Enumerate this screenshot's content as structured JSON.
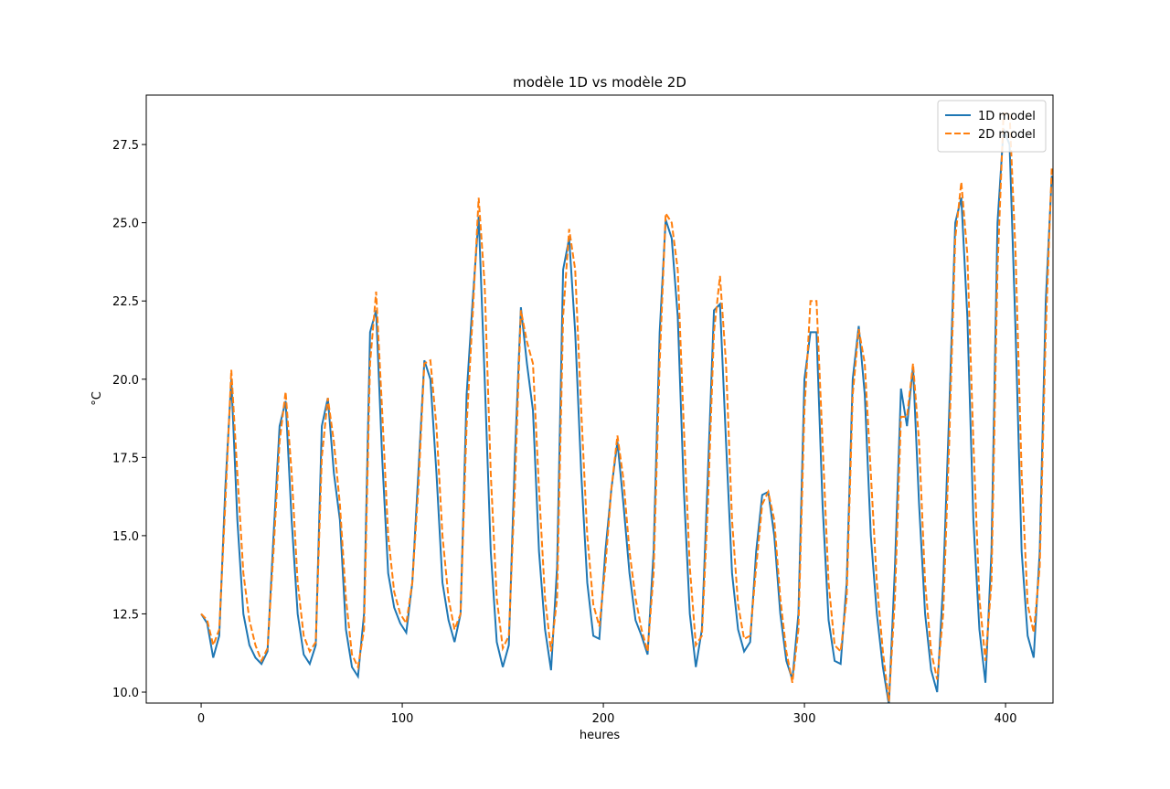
{
  "chart_data": {
    "type": "line",
    "title": "modèle 1D vs modèle 2D",
    "x_label": "heures",
    "y_label": "°C",
    "x": [
      0,
      3,
      6,
      9,
      12,
      15,
      18,
      21,
      24,
      27,
      30,
      33,
      36,
      39,
      42,
      45,
      48,
      51,
      54,
      57,
      60,
      63,
      66,
      69,
      72,
      75,
      78,
      81,
      84,
      87,
      90,
      93,
      96,
      99,
      102,
      105,
      108,
      111,
      114,
      117,
      120,
      123,
      126,
      129,
      132,
      135,
      138,
      141,
      144,
      147,
      150,
      153,
      156,
      159,
      162,
      165,
      168,
      171,
      174,
      177,
      180,
      183,
      186,
      189,
      192,
      195,
      198,
      201,
      204,
      207,
      210,
      213,
      216,
      219,
      222,
      225,
      228,
      231,
      234,
      237,
      240,
      243,
      246,
      249,
      252,
      255,
      258,
      261,
      264,
      267,
      270,
      273,
      276,
      279,
      282,
      285,
      288,
      291,
      294,
      297,
      300,
      303,
      306,
      309,
      312,
      315,
      318,
      321,
      324,
      327,
      330,
      333,
      336,
      339,
      342,
      345,
      348,
      351,
      354,
      357,
      360,
      363,
      366,
      369,
      372,
      375,
      378,
      381,
      384,
      387,
      390,
      393,
      396,
      399,
      402,
      405,
      408,
      411,
      414,
      417,
      420,
      423
    ],
    "series": [
      {
        "name": "1D model",
        "color": "#1f77b4",
        "linestyle": "solid",
        "values": [
          12.5,
          12.2,
          11.1,
          11.8,
          16.5,
          20.0,
          15.5,
          12.5,
          11.5,
          11.1,
          10.9,
          11.3,
          15.0,
          18.5,
          19.3,
          15.5,
          12.5,
          11.2,
          10.9,
          11.5,
          18.5,
          19.4,
          17.0,
          15.5,
          12.0,
          10.8,
          10.5,
          12.5,
          21.5,
          22.2,
          17.5,
          13.8,
          12.7,
          12.2,
          11.9,
          13.5,
          17.0,
          20.6,
          20.0,
          17.0,
          13.5,
          12.3,
          11.6,
          12.5,
          19.5,
          22.5,
          25.2,
          20.0,
          14.5,
          11.6,
          10.8,
          11.5,
          17.5,
          22.3,
          20.5,
          19.0,
          14.5,
          12.0,
          10.7,
          14.0,
          23.5,
          24.5,
          21.5,
          17.0,
          13.5,
          11.8,
          11.7,
          14.5,
          16.5,
          18.0,
          16.0,
          13.8,
          12.3,
          11.8,
          11.2,
          14.5,
          21.5,
          25.1,
          24.5,
          22.0,
          16.5,
          12.5,
          10.8,
          12.0,
          17.0,
          22.2,
          22.4,
          18.0,
          13.8,
          12.0,
          11.3,
          11.6,
          14.5,
          16.3,
          16.4,
          15.0,
          12.5,
          11.0,
          10.4,
          12.5,
          20.0,
          21.5,
          21.5,
          16.0,
          12.3,
          11.0,
          10.9,
          13.5,
          20.0,
          21.7,
          19.5,
          15.0,
          12.5,
          10.8,
          9.6,
          14.0,
          19.7,
          18.5,
          20.4,
          16.0,
          12.5,
          10.7,
          10.0,
          13.5,
          19.0,
          25.0,
          25.8,
          22.0,
          15.5,
          12.0,
          10.3,
          14.5,
          25.0,
          28.0,
          27.5,
          21.5,
          14.5,
          11.8,
          11.1,
          14.5,
          22.5,
          26.5
        ]
      },
      {
        "name": "2D model",
        "color": "#ff7f0e",
        "linestyle": "dashed",
        "values": [
          12.5,
          12.3,
          11.5,
          12.0,
          16.0,
          20.3,
          17.0,
          13.8,
          12.3,
          11.5,
          11.0,
          11.4,
          14.5,
          18.0,
          19.6,
          17.0,
          13.5,
          11.8,
          11.3,
          11.6,
          17.5,
          19.4,
          18.0,
          16.0,
          13.0,
          11.2,
          10.8,
          12.0,
          20.5,
          22.8,
          19.0,
          15.0,
          13.2,
          12.5,
          12.2,
          13.5,
          16.5,
          20.5,
          20.6,
          18.5,
          15.0,
          13.0,
          12.0,
          12.5,
          18.5,
          22.0,
          25.8,
          23.0,
          17.0,
          13.0,
          11.4,
          11.8,
          16.5,
          22.2,
          21.2,
          20.5,
          16.5,
          13.0,
          11.3,
          13.0,
          22.0,
          24.8,
          23.5,
          19.0,
          15.0,
          12.8,
          12.1,
          14.0,
          16.5,
          18.2,
          16.8,
          14.5,
          13.0,
          12.0,
          11.3,
          13.8,
          20.5,
          25.3,
          25.0,
          23.5,
          18.5,
          14.0,
          11.5,
          11.8,
          16.0,
          21.5,
          23.3,
          20.5,
          15.5,
          12.8,
          11.7,
          11.8,
          14.0,
          16.0,
          16.4,
          15.5,
          13.0,
          11.3,
          10.3,
          12.0,
          19.0,
          22.5,
          22.5,
          18.0,
          13.5,
          11.5,
          11.3,
          13.0,
          19.5,
          21.6,
          20.5,
          17.0,
          13.5,
          11.3,
          9.7,
          13.0,
          18.8,
          18.8,
          20.5,
          18.0,
          13.5,
          11.3,
          10.4,
          12.5,
          18.0,
          24.5,
          26.3,
          24.0,
          18.0,
          13.0,
          11.0,
          13.5,
          23.5,
          28.5,
          28.5,
          24.0,
          17.0,
          12.8,
          11.9,
          14.0,
          21.5,
          26.8
        ]
      }
    ],
    "xlim": [
      -27.3,
      423.6
    ],
    "ylim": [
      9.65,
      29.08
    ],
    "xticks": [
      0,
      100,
      200,
      300,
      400
    ],
    "yticks": [
      {
        "value": 10,
        "label": "10.0"
      },
      12.5,
      {
        "value": 15,
        "label": "15.0"
      },
      17.5,
      {
        "value": 20,
        "label": "20.0"
      },
      22.5,
      {
        "value": 25,
        "label": "25.0"
      },
      27.5
    ],
    "legend": "upper right",
    "grid": false
  }
}
